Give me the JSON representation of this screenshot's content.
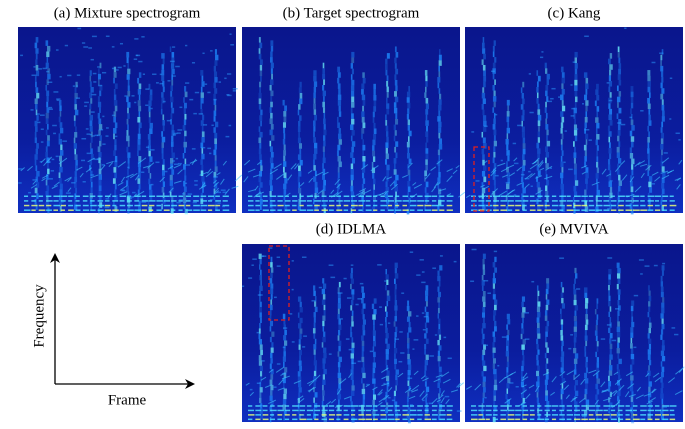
{
  "panels": [
    {
      "title": "(a) Mixture spectrogram"
    },
    {
      "title": "(b) Target spectrogram"
    },
    {
      "title": "(c) Kang"
    },
    {
      "title": "(d) IDLMA"
    },
    {
      "title": "(e) MVIVA"
    }
  ],
  "axes": {
    "y_label": "Frequency",
    "x_label": "Frame"
  }
}
